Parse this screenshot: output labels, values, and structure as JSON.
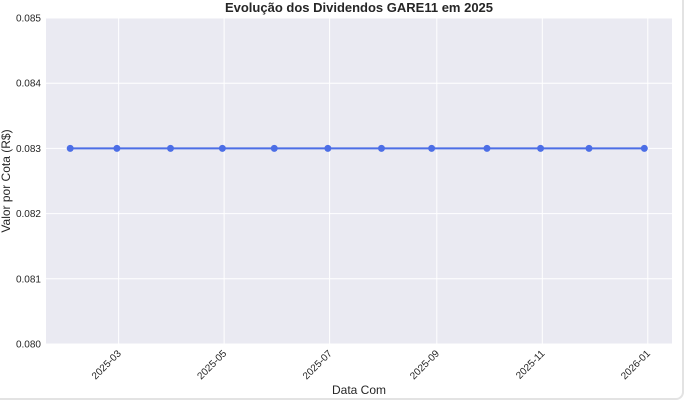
{
  "chart_data": {
    "type": "line",
    "title": "Evolução dos Dividendos GARE11 em 2025",
    "xlabel": "Data Com",
    "ylabel": "Valor por Cota (R$)",
    "x_ticks": [
      "2025-03",
      "2025-05",
      "2025-07",
      "2025-09",
      "2025-11",
      "2026-01"
    ],
    "y_ticks": [
      "0.080",
      "0.081",
      "0.082",
      "0.083",
      "0.084",
      "0.085"
    ],
    "xlim": [
      "2025-01-18",
      "2026-01-15"
    ],
    "ylim": [
      0.08,
      0.085
    ],
    "series": [
      {
        "x": [
          "2025-02-01",
          "2025-02-28",
          "2025-03-31",
          "2025-04-30",
          "2025-05-30",
          "2025-06-30",
          "2025-07-31",
          "2025-08-29",
          "2025-09-30",
          "2025-10-31",
          "2025-11-28",
          "2025-12-30"
        ],
        "values": [
          0.083,
          0.083,
          0.083,
          0.083,
          0.083,
          0.083,
          0.083,
          0.083,
          0.083,
          0.083,
          0.083,
          0.083
        ]
      }
    ],
    "grid": true,
    "colors": {
      "line": "#4c6ee6",
      "background": "#eaeaf2",
      "grid": "#ffffff"
    }
  }
}
